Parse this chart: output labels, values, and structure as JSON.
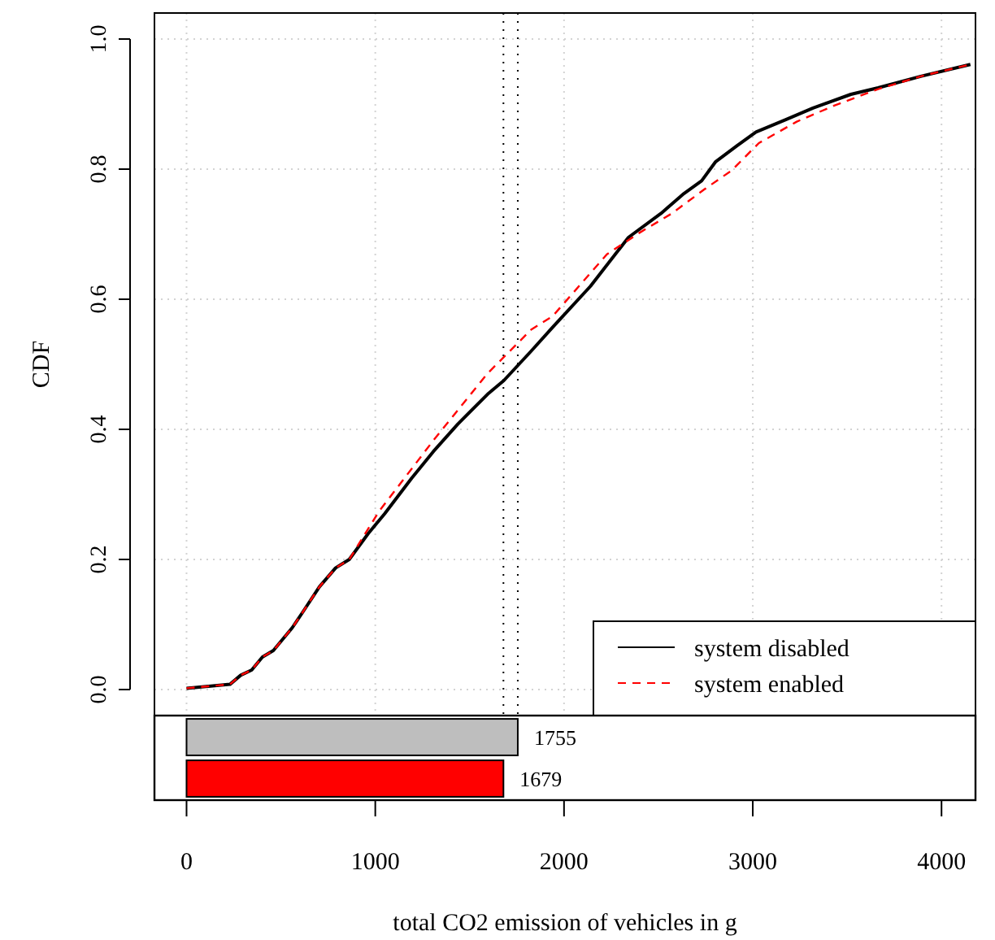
{
  "chart_data": [
    {
      "type": "line",
      "ylabel": "CDF",
      "xlim": [
        -170,
        4180
      ],
      "ylim": [
        -0.04,
        1.04
      ],
      "xticks": [
        0,
        1000,
        2000,
        3000,
        4000
      ],
      "yticks": [
        {
          "value": 0,
          "label": "0.0"
        },
        {
          "value": 0.2,
          "label": "0.2"
        },
        {
          "value": 0.4,
          "label": "0.4"
        },
        {
          "value": 0.6,
          "label": "0.6"
        },
        {
          "value": 0.8,
          "label": "0.8"
        },
        {
          "value": 1.0,
          "label": "1.0"
        }
      ],
      "tick_labels": "y",
      "grid": true,
      "legend": "bottom right",
      "ref_lines": [
        {
          "axis": "x",
          "value": 1679,
          "line_style": "dotted",
          "color": "#000000"
        },
        {
          "axis": "x",
          "value": 1755,
          "line_style": "dotted",
          "color": "#000000"
        }
      ],
      "series": [
        {
          "name": "system disabled",
          "color": "#000000",
          "line_style": "solid",
          "x": [
            0,
            230,
            287,
            345,
            402,
            460,
            560,
            618,
            704,
            790,
            862,
            963,
            1049,
            1193,
            1308,
            1437,
            1595,
            1681,
            1825,
            1940,
            2140,
            2341,
            2514,
            2629,
            2729,
            2802,
            2917,
            3017,
            3175,
            3319,
            3520,
            3664,
            3894,
            4153
          ],
          "values": [
            0.002,
            0.008,
            0.022,
            0.03,
            0.05,
            0.06,
            0.095,
            0.12,
            0.158,
            0.187,
            0.2,
            0.24,
            0.27,
            0.325,
            0.366,
            0.408,
            0.454,
            0.475,
            0.52,
            0.557,
            0.62,
            0.695,
            0.732,
            0.761,
            0.782,
            0.811,
            0.836,
            0.857,
            0.876,
            0.894,
            0.915,
            0.925,
            0.943,
            0.961
          ]
        },
        {
          "name": "system enabled",
          "color": "#ff0000",
          "line_style": "dashed",
          "x": [
            0,
            230,
            287,
            345,
            402,
            460,
            560,
            618,
            704,
            790,
            862,
            1020,
            1308,
            1595,
            1825,
            1940,
            2227,
            2399,
            2572,
            2744,
            2888,
            3032,
            3233,
            3434,
            3664,
            3894,
            4153
          ],
          "values": [
            0.002,
            0.008,
            0.022,
            0.03,
            0.05,
            0.06,
            0.095,
            0.12,
            0.158,
            0.187,
            0.2,
            0.274,
            0.383,
            0.486,
            0.553,
            0.574,
            0.669,
            0.702,
            0.732,
            0.769,
            0.798,
            0.84,
            0.873,
            0.898,
            0.923,
            0.943,
            0.961
          ]
        }
      ]
    },
    {
      "type": "bar",
      "orientation": "horizontal",
      "categories": [
        null,
        null
      ],
      "values": [
        1755,
        1679
      ],
      "colors": [
        "#bebebe",
        "#ff0000"
      ],
      "data_labels": true,
      "xlim": [
        -170,
        4180
      ],
      "xticks": [
        0,
        1000,
        2000,
        3000,
        4000
      ],
      "tick_labels": "x",
      "xlabel": "total CO2 emission of vehicles in g"
    }
  ]
}
